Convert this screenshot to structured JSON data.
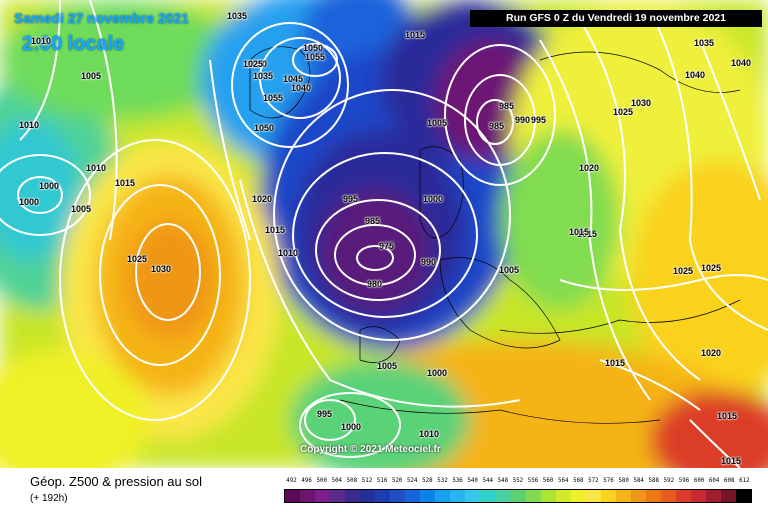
{
  "header": {
    "date_title": "Samedi 27 novembre 2021",
    "local_time": "2:00 locale",
    "run_info": "Run GFS 0 Z du Vendredi 19 novembre 2021"
  },
  "copyright": "Copyright © 2021 Meteociel.fr",
  "footer": {
    "title": "Géop. Z500 & pression au sol",
    "subtitle": "(+ 192h)"
  },
  "colorscale": {
    "labels": [
      "492",
      "496",
      "500",
      "504",
      "508",
      "512",
      "516",
      "520",
      "524",
      "528",
      "532",
      "536",
      "540",
      "544",
      "548",
      "552",
      "556",
      "560",
      "564",
      "568",
      "572",
      "576",
      "580",
      "584",
      "588",
      "592",
      "596",
      "600",
      "604",
      "608",
      "612"
    ],
    "colors": [
      "#5a0a5a",
      "#6e1473",
      "#7d1e8a",
      "#5a2a8c",
      "#3c2a8c",
      "#26309c",
      "#1e3cb4",
      "#1e50c8",
      "#1464dc",
      "#0a82f0",
      "#14a0f5",
      "#28b4f0",
      "#32c8e6",
      "#32d2c8",
      "#46d2a0",
      "#5ad278",
      "#82dc50",
      "#aae632",
      "#d2eb28",
      "#f0f028",
      "#fae646",
      "#fad21e",
      "#f5b414",
      "#f09614",
      "#eb7814",
      "#e65a1e",
      "#dc3c28",
      "#c82832",
      "#a01e32",
      "#781428",
      "#000000"
    ]
  },
  "isobar_labels": [
    {
      "text": "1035"
    },
    {
      "text": "1015"
    },
    {
      "text": "1010"
    },
    {
      "text": "1005"
    },
    {
      "text": "1010"
    },
    {
      "text": "1000"
    },
    {
      "text": "1000"
    },
    {
      "text": "1005"
    },
    {
      "text": "1010"
    },
    {
      "text": "1015"
    },
    {
      "text": "1025"
    },
    {
      "text": "1030"
    },
    {
      "text": "1050"
    },
    {
      "text": "1055"
    },
    {
      "text": "1030"
    },
    {
      "text": "1035"
    },
    {
      "text": "1045"
    },
    {
      "text": "1040"
    },
    {
      "text": "1055"
    },
    {
      "text": "1050"
    },
    {
      "text": "1025"
    },
    {
      "text": "1015"
    },
    {
      "text": "1005"
    },
    {
      "text": "985"
    },
    {
      "text": "990"
    },
    {
      "text": "995"
    },
    {
      "text": "985"
    },
    {
      "text": "995"
    },
    {
      "text": "1000"
    },
    {
      "text": "985"
    },
    {
      "text": "975"
    },
    {
      "text": "980"
    },
    {
      "text": "990"
    },
    {
      "text": "1020"
    },
    {
      "text": "1015"
    },
    {
      "text": "1010"
    },
    {
      "text": "1005"
    },
    {
      "text": "1005"
    },
    {
      "text": "1000"
    },
    {
      "text": "1010"
    },
    {
      "text": "995"
    },
    {
      "text": "1000"
    },
    {
      "text": "1035"
    },
    {
      "text": "1040"
    },
    {
      "text": "1040"
    },
    {
      "text": "1030"
    },
    {
      "text": "1025"
    },
    {
      "text": "1020"
    },
    {
      "text": "1015"
    },
    {
      "text": "1025"
    },
    {
      "text": "1025"
    },
    {
      "text": "1020"
    },
    {
      "text": "1015"
    },
    {
      "text": "1015"
    },
    {
      "text": "1015"
    }
  ]
}
